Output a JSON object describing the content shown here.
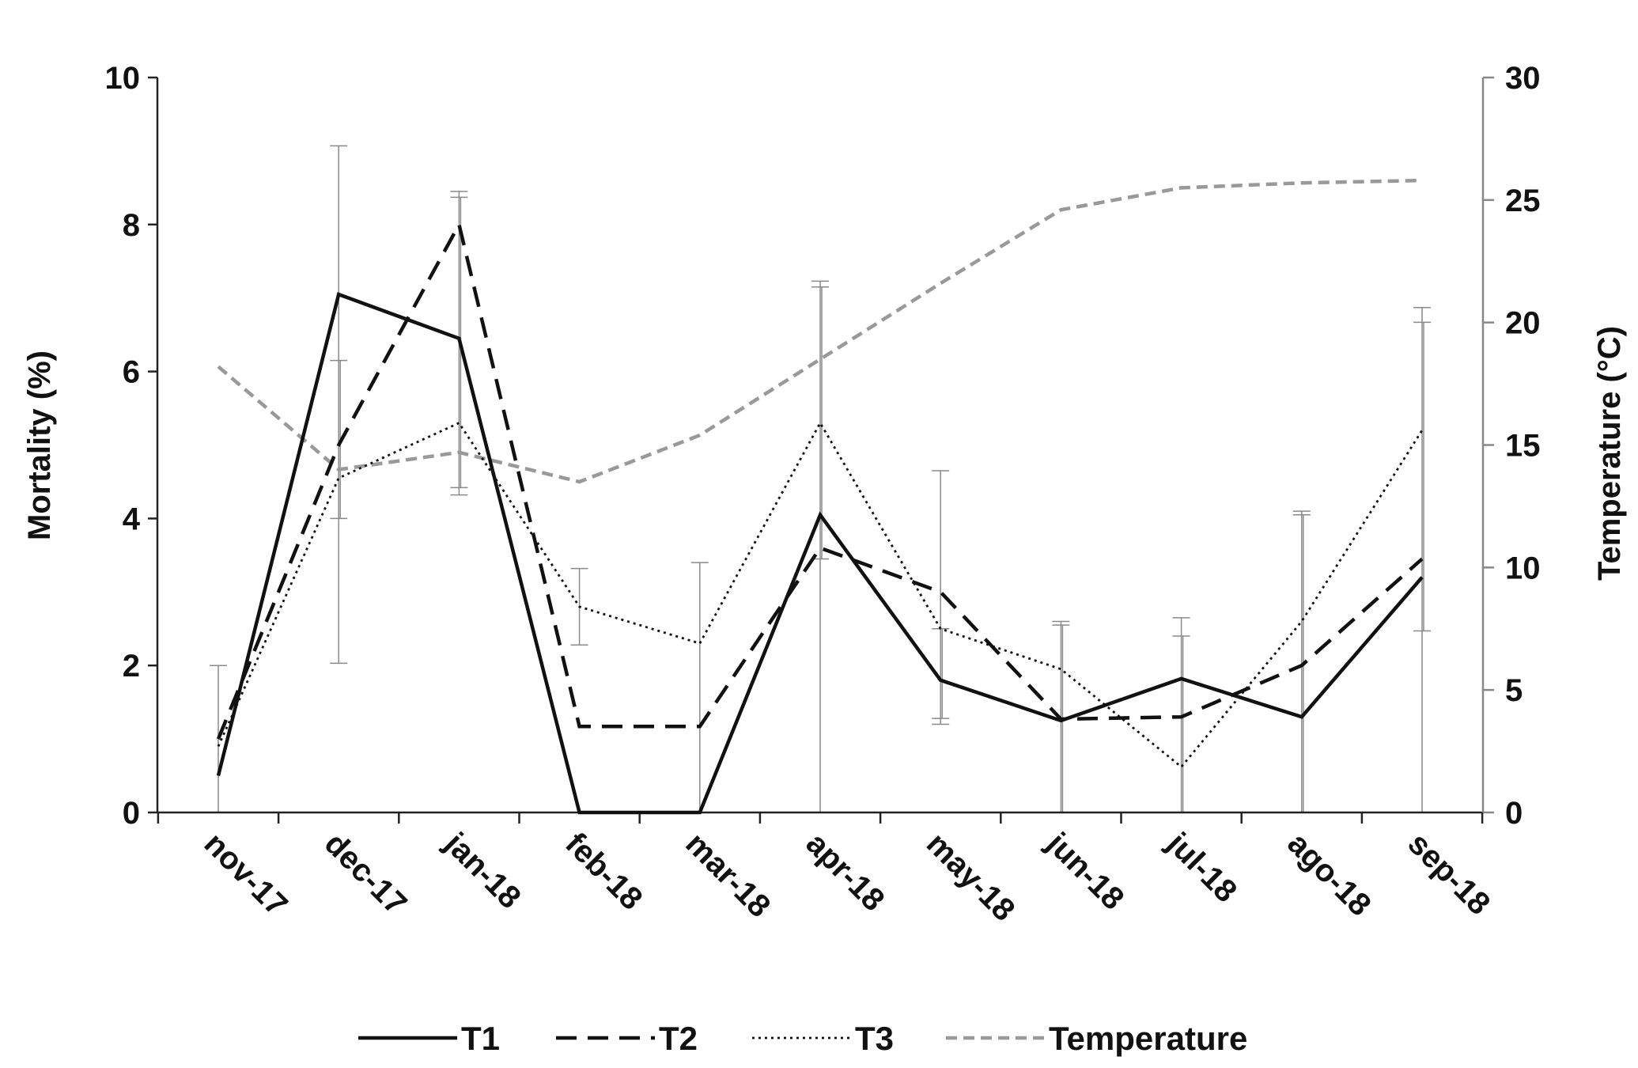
{
  "chart_data": {
    "type": "line",
    "categories": [
      "nov-17",
      "dec-17",
      "jan-18",
      "feb-18",
      "mar-18",
      "apr-18",
      "may-18",
      "jun-18",
      "jul-18",
      "ago-18",
      "sep-18"
    ],
    "ylabel": "Mortality (%)",
    "y2label": "Temperature (°C)",
    "ylim": [
      0,
      10
    ],
    "y2lim": [
      0,
      30
    ],
    "yticks": [
      "0",
      "2",
      "4",
      "6",
      "8",
      "10"
    ],
    "y2ticks": [
      "0",
      "5",
      "10",
      "15",
      "20",
      "25",
      "30"
    ],
    "legend_position": "bottom",
    "series": [
      {
        "name": "T1",
        "axis": "left",
        "style": "solid",
        "color": "#111111",
        "values": [
          0.5,
          7.05,
          6.45,
          0.0,
          0.0,
          4.05,
          1.8,
          1.25,
          1.82,
          1.3,
          3.2
        ]
      },
      {
        "name": "T2",
        "axis": "left",
        "style": "dashed",
        "color": "#111111",
        "values": [
          1.0,
          5.0,
          8.0,
          1.17,
          1.17,
          3.6,
          3.0,
          1.27,
          1.3,
          2.0,
          3.45
        ]
      },
      {
        "name": "T3",
        "axis": "left",
        "style": "dotted",
        "color": "#111111",
        "values": [
          0.9,
          4.55,
          5.3,
          2.8,
          2.3,
          5.3,
          2.5,
          1.95,
          0.62,
          2.6,
          5.2
        ]
      },
      {
        "name": "Temperature",
        "axis": "right",
        "style": "gray-dashed",
        "color": "#999999",
        "values": [
          18.2,
          14.0,
          14.7,
          13.5,
          15.4,
          18.5,
          21.6,
          24.6,
          25.5,
          25.7,
          25.8
        ]
      }
    ],
    "error_bars": [
      {
        "category": "nov-17",
        "ranges": [
          [
            0.0,
            2.0
          ]
        ]
      },
      {
        "category": "dec-17",
        "ranges": [
          [
            2.03,
            9.07
          ],
          [
            4.0,
            6.15
          ]
        ]
      },
      {
        "category": "jan-18",
        "ranges": [
          [
            4.32,
            8.45
          ],
          [
            4.42,
            8.37
          ]
        ]
      },
      {
        "category": "feb-18",
        "ranges": [
          [
            2.28,
            3.32
          ]
        ]
      },
      {
        "category": "mar-18",
        "ranges": [
          [
            0.0,
            3.4
          ]
        ]
      },
      {
        "category": "apr-18",
        "ranges": [
          [
            0.0,
            7.23
          ],
          [
            3.45,
            7.15
          ]
        ]
      },
      {
        "category": "may-18",
        "ranges": [
          [
            1.2,
            4.65
          ],
          [
            1.28,
            2.5
          ]
        ]
      },
      {
        "category": "jun-18",
        "ranges": [
          [
            0.0,
            2.6
          ],
          [
            0.0,
            2.55
          ]
        ]
      },
      {
        "category": "jul-18",
        "ranges": [
          [
            0.0,
            2.65
          ],
          [
            0.0,
            2.4
          ]
        ]
      },
      {
        "category": "ago-18",
        "ranges": [
          [
            0.0,
            4.1
          ],
          [
            0.0,
            4.05
          ]
        ]
      },
      {
        "category": "sep-18",
        "ranges": [
          [
            0.0,
            6.87
          ],
          [
            2.47,
            6.67
          ]
        ]
      }
    ]
  }
}
